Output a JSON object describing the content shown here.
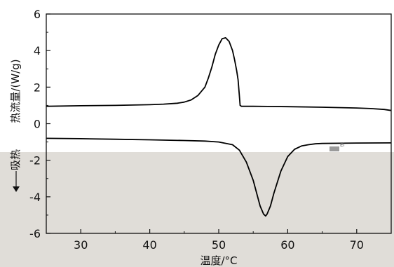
{
  "chart_data": {
    "type": "line",
    "title": "",
    "xlabel": "温度/°C",
    "ylabel": "热流量/(W/g)",
    "ylabel_extra": "吸热",
    "xlim": [
      25,
      75
    ],
    "ylim": [
      -6,
      6
    ],
    "x_ticks": [
      30,
      40,
      50,
      60,
      70
    ],
    "y_ticks": [
      -6,
      -4,
      -2,
      0,
      2,
      4,
      6
    ],
    "grid": false,
    "legend": "none",
    "line_color": "#000000",
    "series": [
      {
        "x": [
          25,
          30,
          35,
          40,
          42,
          44,
          45,
          46,
          47,
          48,
          48.5,
          49,
          49.5,
          50,
          50.5,
          51,
          51.5,
          52,
          52.3,
          52.6,
          52.8,
          53,
          53.1,
          53.3,
          55,
          60,
          65,
          70,
          72,
          74,
          75
        ],
        "values": [
          0.95,
          0.98,
          1.0,
          1.04,
          1.07,
          1.12,
          1.18,
          1.3,
          1.55,
          2.0,
          2.5,
          3.1,
          3.8,
          4.3,
          4.65,
          4.7,
          4.5,
          4.0,
          3.5,
          2.9,
          2.4,
          1.5,
          1.0,
          0.95,
          0.95,
          0.93,
          0.9,
          0.86,
          0.83,
          0.78,
          0.72
        ]
      },
      {
        "x": [
          25,
          30,
          35,
          40,
          45,
          48,
          50,
          52,
          53,
          54,
          55,
          55.5,
          56,
          56.5,
          56.8,
          57,
          57.5,
          58,
          59,
          60,
          61,
          62,
          63,
          64,
          65,
          70,
          75
        ],
        "values": [
          -0.8,
          -0.82,
          -0.85,
          -0.88,
          -0.92,
          -0.95,
          -1.0,
          -1.15,
          -1.45,
          -2.1,
          -3.1,
          -3.8,
          -4.5,
          -4.95,
          -5.05,
          -4.95,
          -4.5,
          -3.8,
          -2.6,
          -1.8,
          -1.4,
          -1.22,
          -1.15,
          -1.1,
          -1.08,
          -1.06,
          -1.05
        ]
      }
    ]
  },
  "annotation": "El"
}
